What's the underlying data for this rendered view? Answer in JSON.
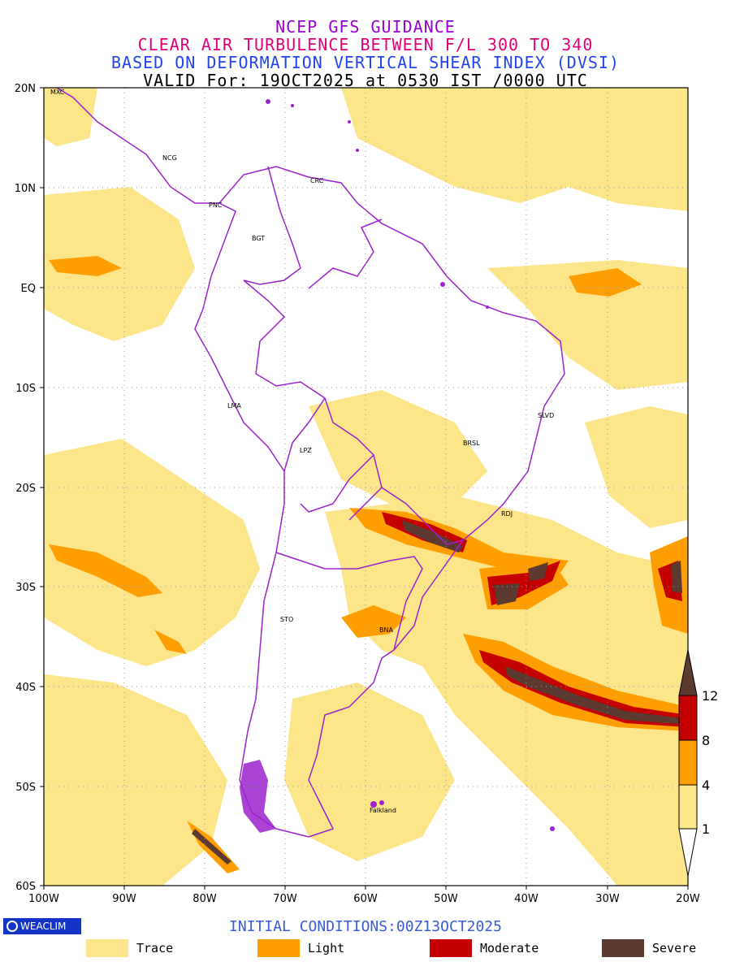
{
  "titles": {
    "line1": "NCEP GFS GUIDANCE",
    "line2": "CLEAR AIR TURBULENCE BETWEEN F/L 300 TO 340",
    "line3": "BASED ON DEFORMATION VERTICAL SHEAR INDEX (DVSI)",
    "line4": "VALID For: 19OCT2025 at 0530 IST /0000 UTC"
  },
  "map": {
    "lat_labels": [
      "20N",
      "10N",
      "EQ",
      "10S",
      "20S",
      "30S",
      "40S",
      "50S",
      "60S"
    ],
    "lon_labels": [
      "100W",
      "90W",
      "80W",
      "70W",
      "60W",
      "50W",
      "40W",
      "30W",
      "20W"
    ],
    "cities": {
      "mxc": "MXC",
      "ncg": "NCG",
      "pnc": "PNC",
      "crc": "CRC",
      "bgt": "BGT",
      "lma": "LMA",
      "lpz": "LPZ",
      "slvd": "SLVD",
      "brsl": "BRSL",
      "rdj": "RDJ",
      "sto": "STO",
      "bna": "BNA",
      "falkland": "Falkland"
    },
    "colors": {
      "trace": "#fde68a",
      "light": "#ff9e00",
      "moderate": "#c40000",
      "severe": "#5c3a30",
      "borders": "#9b22cc"
    }
  },
  "colorbar": {
    "ticks": [
      "12",
      "8",
      "4",
      "1"
    ]
  },
  "footer": {
    "brand": "WEACLIM",
    "initial_conditions": "INITIAL CONDITIONS:00Z13OCT2025"
  },
  "legend": [
    {
      "label": "Trace",
      "color": "#fde68a"
    },
    {
      "label": "Light",
      "color": "#ff9e00"
    },
    {
      "label": "Moderate",
      "color": "#c40000"
    },
    {
      "label": "Severe",
      "color": "#5c3a30"
    }
  ]
}
